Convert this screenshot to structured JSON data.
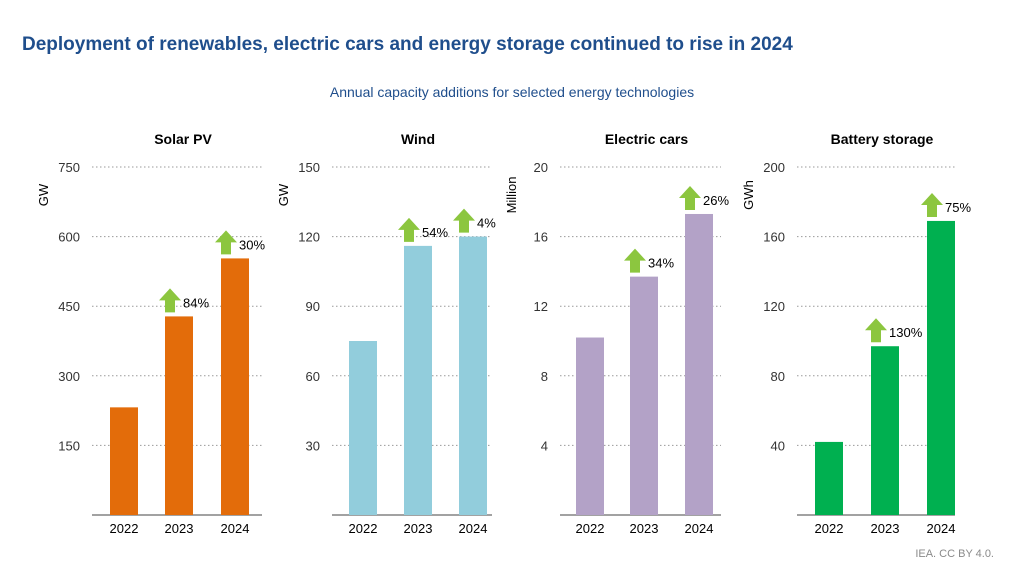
{
  "title": "Deployment of renewables, electric cars and energy storage continued to rise in 2024",
  "subtitle": "Annual capacity additions for selected energy technologies",
  "source": "IEA. CC BY 4.0.",
  "colors": {
    "title": "#1f4e8c",
    "arrow": "#8cc63f",
    "solar": "#e36c0a",
    "wind": "#92cddc",
    "cars": "#b3a2c7",
    "battery": "#00b050"
  },
  "chart_data": [
    {
      "type": "bar",
      "title": "Solar PV",
      "ylabel": "GW",
      "categories": [
        "2022",
        "2023",
        "2024"
      ],
      "values": [
        232,
        428,
        553
      ],
      "ylim": [
        0,
        750
      ],
      "yticks": [
        150,
        300,
        450,
        600,
        750
      ],
      "growth_labels": [
        "",
        "84%",
        "30%"
      ],
      "color": "#e36c0a",
      "grid": true
    },
    {
      "type": "bar",
      "title": "Wind",
      "ylabel": "GW",
      "categories": [
        "2022",
        "2023",
        "2024"
      ],
      "values": [
        75,
        116,
        120
      ],
      "ylim": [
        0,
        150
      ],
      "yticks": [
        30,
        60,
        90,
        120,
        150
      ],
      "growth_labels": [
        "",
        "54%",
        "4%"
      ],
      "color": "#92cddc",
      "grid": true
    },
    {
      "type": "bar",
      "title": "Electric cars",
      "ylabel": "Million",
      "categories": [
        "2022",
        "2023",
        "2024"
      ],
      "values": [
        10.2,
        13.7,
        17.3
      ],
      "ylim": [
        0,
        20
      ],
      "yticks": [
        4,
        8,
        12,
        16,
        20
      ],
      "growth_labels": [
        "",
        "34%",
        "26%"
      ],
      "color": "#b3a2c7",
      "grid": true
    },
    {
      "type": "bar",
      "title": "Battery storage",
      "ylabel": "GWh",
      "categories": [
        "2022",
        "2023",
        "2024"
      ],
      "values": [
        42,
        97,
        169
      ],
      "ylim": [
        0,
        200
      ],
      "yticks": [
        40,
        80,
        120,
        160,
        200
      ],
      "growth_labels": [
        "",
        "130%",
        "75%"
      ],
      "color": "#00b050",
      "grid": true
    }
  ]
}
